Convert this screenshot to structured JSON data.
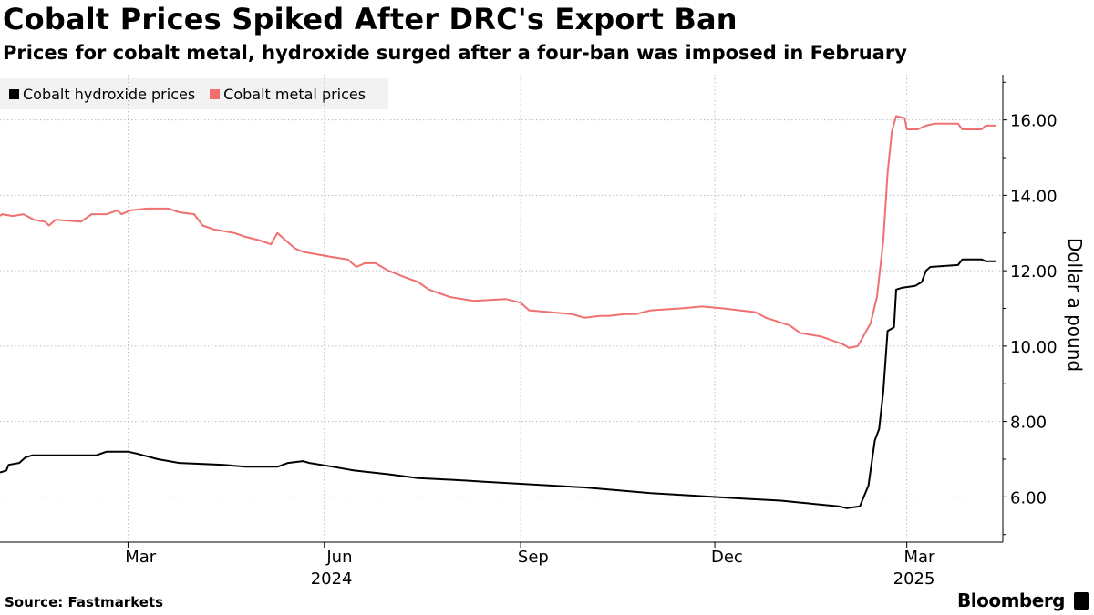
{
  "header": {
    "title": "Cobalt Prices Spiked After DRC's Export Ban",
    "subtitle": "Prices for cobalt metal, hydroxide surged after a four-ban was imposed in February"
  },
  "legend": [
    {
      "label": "Cobalt hydroxide prices",
      "color": "#000000"
    },
    {
      "label": "Cobalt metal prices",
      "color": "#f07070"
    }
  ],
  "footer": {
    "source": "Source: Fastmarkets",
    "brand": "Bloomberg"
  },
  "chart_data": {
    "type": "line",
    "title": "Cobalt Prices Spiked After DRC's Export Ban",
    "ylabel": "Dollar a pound",
    "xlabel": "",
    "ylim": [
      4.8,
      17.2
    ],
    "xlim": [
      "2024-01-01",
      "2025-04-15"
    ],
    "yticks": [
      {
        "value": 6,
        "label": "6.00"
      },
      {
        "value": 8,
        "label": "8.00"
      },
      {
        "value": 10,
        "label": "10.00"
      },
      {
        "value": 12,
        "label": "12.00"
      },
      {
        "value": 14,
        "label": "14.00"
      },
      {
        "value": 16,
        "label": "16.00"
      }
    ],
    "xticks": [
      {
        "date": "2024-03-01",
        "label": "Mar"
      },
      {
        "date": "2024-06-01",
        "label": "Jun"
      },
      {
        "date": "2024-09-01",
        "label": "Sep"
      },
      {
        "date": "2024-12-01",
        "label": "Dec"
      },
      {
        "date": "2025-03-01",
        "label": "Mar"
      }
    ],
    "year_labels": [
      {
        "date": "2024-06-01",
        "label": "2024"
      },
      {
        "date": "2025-03-01",
        "label": "2025"
      }
    ],
    "grid": true,
    "legend_position": "top-left",
    "series": [
      {
        "name": "Cobalt hydroxide prices",
        "color": "#000000",
        "points": [
          [
            "2024-01-01",
            6.65
          ],
          [
            "2024-01-04",
            6.7
          ],
          [
            "2024-01-05",
            6.85
          ],
          [
            "2024-01-10",
            6.9
          ],
          [
            "2024-01-13",
            7.05
          ],
          [
            "2024-01-16",
            7.1
          ],
          [
            "2024-02-01",
            7.1
          ],
          [
            "2024-02-15",
            7.1
          ],
          [
            "2024-02-20",
            7.2
          ],
          [
            "2024-03-01",
            7.2
          ],
          [
            "2024-03-05",
            7.15
          ],
          [
            "2024-03-15",
            7.0
          ],
          [
            "2024-03-25",
            6.9
          ],
          [
            "2024-04-15",
            6.85
          ],
          [
            "2024-04-25",
            6.8
          ],
          [
            "2024-05-10",
            6.8
          ],
          [
            "2024-05-15",
            6.9
          ],
          [
            "2024-05-22",
            6.95
          ],
          [
            "2024-05-25",
            6.9
          ],
          [
            "2024-06-05",
            6.8
          ],
          [
            "2024-06-15",
            6.7
          ],
          [
            "2024-07-01",
            6.6
          ],
          [
            "2024-07-15",
            6.5
          ],
          [
            "2024-08-01",
            6.45
          ],
          [
            "2024-08-15",
            6.4
          ],
          [
            "2024-09-15",
            6.3
          ],
          [
            "2024-10-01",
            6.25
          ],
          [
            "2024-11-01",
            6.1
          ],
          [
            "2024-12-15",
            5.95
          ],
          [
            "2025-01-01",
            5.9
          ],
          [
            "2025-01-10",
            5.85
          ],
          [
            "2025-01-28",
            5.75
          ],
          [
            "2025-02-01",
            5.7
          ],
          [
            "2025-02-07",
            5.75
          ],
          [
            "2025-02-11",
            6.3
          ],
          [
            "2025-02-14",
            7.5
          ],
          [
            "2025-02-16",
            7.8
          ],
          [
            "2025-02-18",
            8.8
          ],
          [
            "2025-02-20",
            10.4
          ],
          [
            "2025-02-23",
            10.5
          ],
          [
            "2025-02-24",
            11.5
          ],
          [
            "2025-02-27",
            11.55
          ],
          [
            "2025-03-05",
            11.6
          ],
          [
            "2025-03-08",
            11.7
          ],
          [
            "2025-03-10",
            12.0
          ],
          [
            "2025-03-12",
            12.1
          ],
          [
            "2025-03-25",
            12.15
          ],
          [
            "2025-03-27",
            12.3
          ],
          [
            "2025-04-05",
            12.3
          ],
          [
            "2025-04-07",
            12.25
          ],
          [
            "2025-04-12",
            12.25
          ]
        ]
      },
      {
        "name": "Cobalt metal prices",
        "color": "#f07070",
        "points": [
          [
            "2024-01-01",
            13.45
          ],
          [
            "2024-01-02",
            13.5
          ],
          [
            "2024-01-07",
            13.45
          ],
          [
            "2024-01-12",
            13.5
          ],
          [
            "2024-01-17",
            13.35
          ],
          [
            "2024-01-22",
            13.3
          ],
          [
            "2024-01-24",
            13.2
          ],
          [
            "2024-01-27",
            13.35
          ],
          [
            "2024-02-08",
            13.3
          ],
          [
            "2024-02-13",
            13.5
          ],
          [
            "2024-02-20",
            13.5
          ],
          [
            "2024-02-25",
            13.6
          ],
          [
            "2024-02-27",
            13.5
          ],
          [
            "2024-03-02",
            13.6
          ],
          [
            "2024-03-10",
            13.65
          ],
          [
            "2024-03-20",
            13.65
          ],
          [
            "2024-03-25",
            13.55
          ],
          [
            "2024-04-01",
            13.5
          ],
          [
            "2024-04-05",
            13.2
          ],
          [
            "2024-04-10",
            13.1
          ],
          [
            "2024-04-20",
            13.0
          ],
          [
            "2024-04-25",
            12.9
          ],
          [
            "2024-05-02",
            12.8
          ],
          [
            "2024-05-07",
            12.7
          ],
          [
            "2024-05-10",
            13.0
          ],
          [
            "2024-05-14",
            12.8
          ],
          [
            "2024-05-18",
            12.6
          ],
          [
            "2024-05-22",
            12.5
          ],
          [
            "2024-05-27",
            12.45
          ],
          [
            "2024-06-01",
            12.4
          ],
          [
            "2024-06-06",
            12.35
          ],
          [
            "2024-06-12",
            12.3
          ],
          [
            "2024-06-16",
            12.1
          ],
          [
            "2024-06-20",
            12.2
          ],
          [
            "2024-06-25",
            12.2
          ],
          [
            "2024-07-01",
            12.0
          ],
          [
            "2024-07-10",
            11.8
          ],
          [
            "2024-07-15",
            11.7
          ],
          [
            "2024-07-20",
            11.5
          ],
          [
            "2024-07-25",
            11.4
          ],
          [
            "2024-07-30",
            11.3
          ],
          [
            "2024-08-10",
            11.2
          ],
          [
            "2024-08-25",
            11.25
          ],
          [
            "2024-09-01",
            11.15
          ],
          [
            "2024-09-05",
            10.95
          ],
          [
            "2024-09-15",
            10.9
          ],
          [
            "2024-09-25",
            10.85
          ],
          [
            "2024-10-01",
            10.75
          ],
          [
            "2024-10-08",
            10.8
          ],
          [
            "2024-10-12",
            10.8
          ],
          [
            "2024-10-20",
            10.85
          ],
          [
            "2024-10-25",
            10.85
          ],
          [
            "2024-11-01",
            10.95
          ],
          [
            "2024-11-15",
            11.0
          ],
          [
            "2024-11-25",
            11.05
          ],
          [
            "2024-12-05",
            11.0
          ],
          [
            "2024-12-20",
            10.9
          ],
          [
            "2024-12-25",
            10.75
          ],
          [
            "2025-01-05",
            10.55
          ],
          [
            "2025-01-10",
            10.35
          ],
          [
            "2025-01-20",
            10.25
          ],
          [
            "2025-01-25",
            10.15
          ],
          [
            "2025-01-30",
            10.05
          ],
          [
            "2025-02-02",
            9.95
          ],
          [
            "2025-02-06",
            10.0
          ],
          [
            "2025-02-09",
            10.3
          ],
          [
            "2025-02-12",
            10.6
          ],
          [
            "2025-02-15",
            11.3
          ],
          [
            "2025-02-18",
            12.8
          ],
          [
            "2025-02-20",
            14.6
          ],
          [
            "2025-02-22",
            15.7
          ],
          [
            "2025-02-24",
            16.1
          ],
          [
            "2025-02-28",
            16.05
          ],
          [
            "2025-03-01",
            15.75
          ],
          [
            "2025-03-06",
            15.75
          ],
          [
            "2025-03-10",
            15.85
          ],
          [
            "2025-03-14",
            15.9
          ],
          [
            "2025-03-25",
            15.9
          ],
          [
            "2025-03-27",
            15.75
          ],
          [
            "2025-04-05",
            15.75
          ],
          [
            "2025-04-07",
            15.85
          ],
          [
            "2025-04-12",
            15.85
          ]
        ]
      }
    ]
  }
}
